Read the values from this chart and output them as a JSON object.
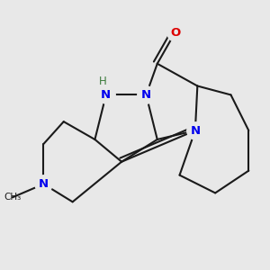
{
  "bg_color": "#e8e8e8",
  "bond_color": "#1a1a1a",
  "N_color": "#0000ee",
  "O_color": "#dd0000",
  "H_color": "#3a7a3a",
  "line_width": 1.5,
  "font_size_atom": 9.5,
  "fig_size": [
    3.0,
    3.0
  ],
  "dpi": 100,
  "xlim": [
    -2.8,
    3.2
  ],
  "ylim": [
    -2.4,
    2.8
  ]
}
